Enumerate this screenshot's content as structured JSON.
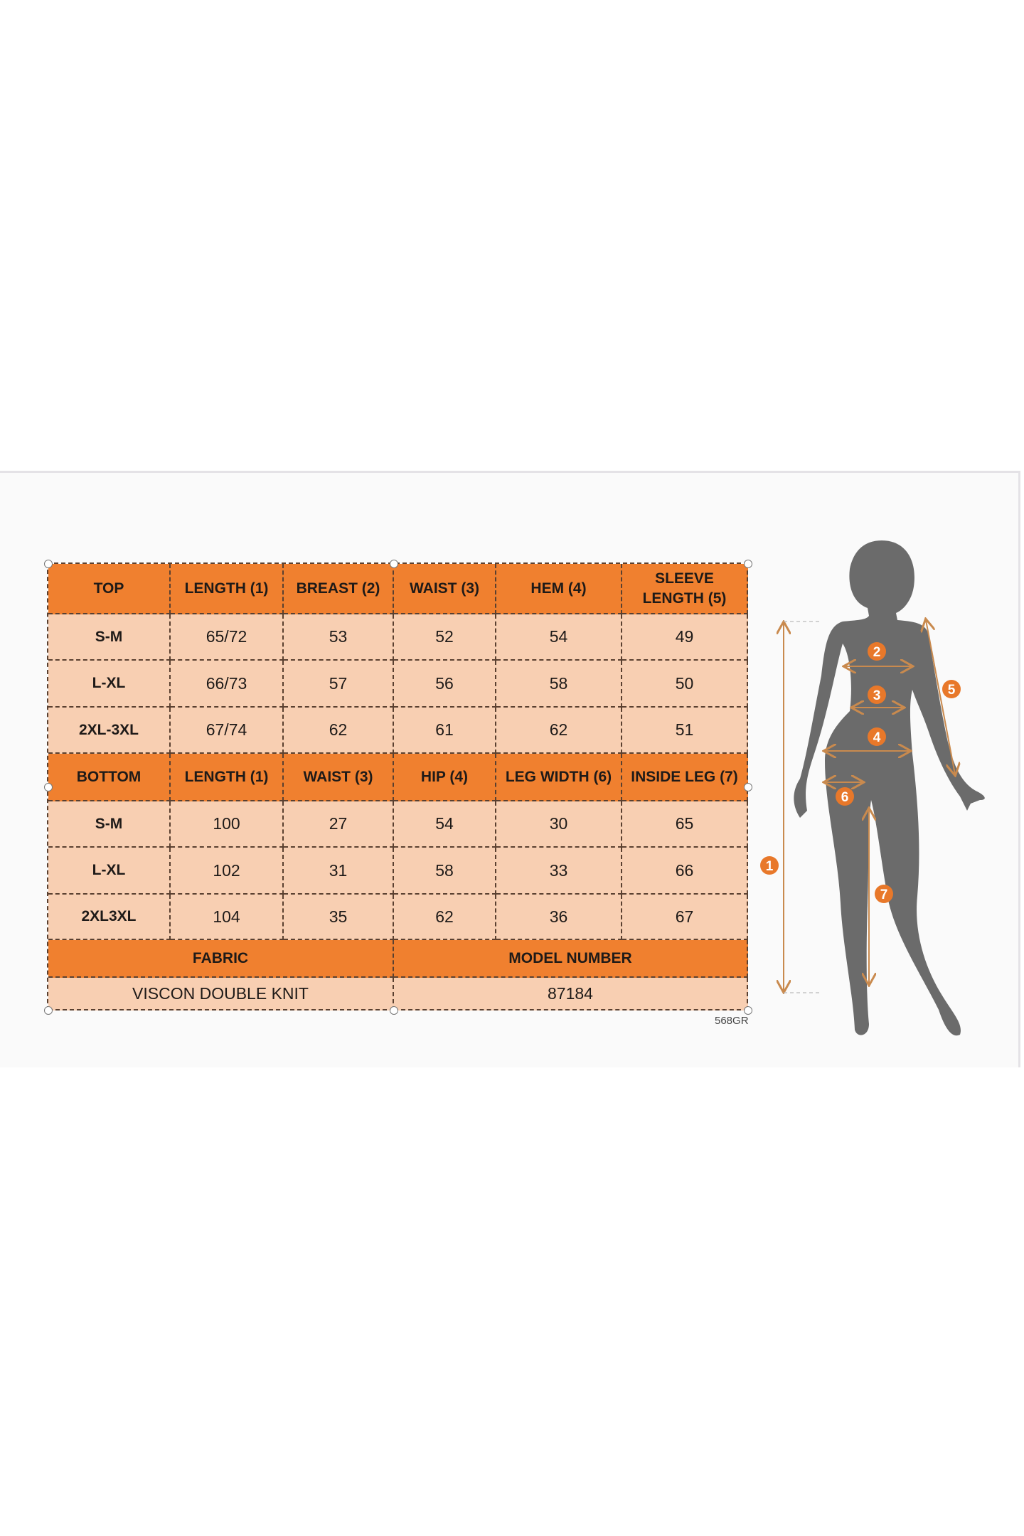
{
  "top_table": {
    "headers": [
      "TOP",
      "LENGTH (1)",
      "BREAST (2)",
      "WAIST (3)",
      "HEM (4)",
      "SLEEVE LENGTH (5)"
    ],
    "rows": [
      [
        "S-M",
        "65/72",
        "53",
        "52",
        "54",
        "49"
      ],
      [
        "L-XL",
        "66/73",
        "57",
        "56",
        "58",
        "50"
      ],
      [
        "2XL-3XL",
        "67/74",
        "62",
        "61",
        "62",
        "51"
      ]
    ]
  },
  "bottom_table": {
    "headers": [
      "BOTTOM",
      "LENGTH (1)",
      "WAIST (3)",
      "HIP (4)",
      "LEG WIDTH (6)",
      "INSIDE LEG (7)"
    ],
    "rows": [
      [
        "S-M",
        "100",
        "27",
        "54",
        "30",
        "65"
      ],
      [
        "L-XL",
        "102",
        "31",
        "58",
        "33",
        "66"
      ],
      [
        "2XL3XL",
        "104",
        "35",
        "62",
        "36",
        "67"
      ]
    ]
  },
  "footer": {
    "fabric_label": "FABRIC",
    "model_label": "MODEL NUMBER",
    "fabric_value": "VISCON DOUBLE KNIT",
    "model_value": "87184"
  },
  "code": "568GR",
  "figure": {
    "markers": [
      "1",
      "2",
      "3",
      "4",
      "5",
      "6",
      "7"
    ]
  },
  "colors": {
    "header": "#f0802f",
    "cell": "#f8cfb2",
    "marker": "#e8782a",
    "arrow": "#c98a4e",
    "silhouette": "#6b6b6b"
  }
}
